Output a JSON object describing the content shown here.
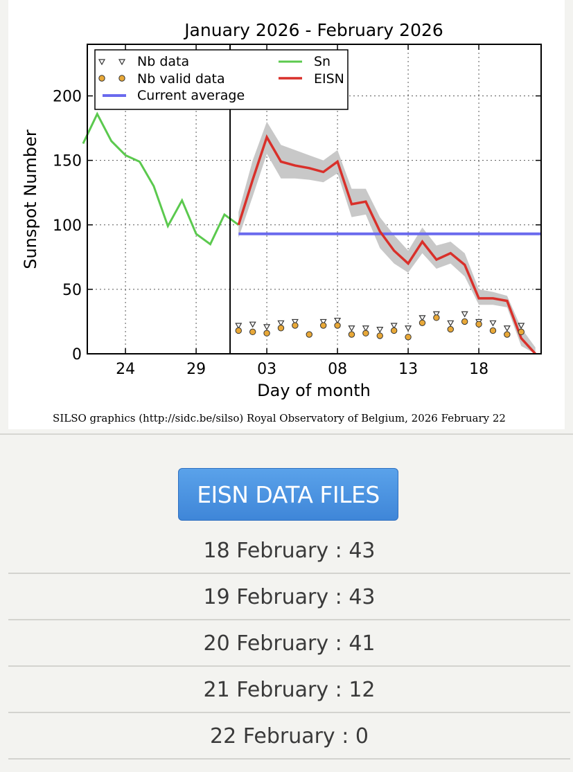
{
  "chart_data": {
    "type": "line",
    "title": "January 2026 - February 2026",
    "xlabel": "Day of month",
    "ylabel": "Sunspot Number",
    "ylim": [
      0,
      240
    ],
    "yticks": [
      0,
      50,
      100,
      150,
      200
    ],
    "xtick_labels": [
      "24",
      "29",
      "03",
      "08",
      "13",
      "18"
    ],
    "credit": "SILSO graphics (http://sidc.be/silso) Royal Observatory of Belgium, 2026 February 22",
    "grid": true,
    "legend_position": "top-left",
    "legend": {
      "nb_data": "Nb data",
      "nb_valid": "Nb valid data",
      "current_average": "Current average",
      "sn": "Sn",
      "eisn": "EISN"
    },
    "colors": {
      "sn": "#5bc94e",
      "eisn": "#d9302a",
      "average": "#6a6aee",
      "band": "#c8c8c8",
      "valid_marker": "#e8a838"
    },
    "sn_series": {
      "x": [
        "Jan 21",
        "Jan 22",
        "Jan 23",
        "Jan 24",
        "Jan 25",
        "Jan 26",
        "Jan 27",
        "Jan 28",
        "Jan 29",
        "Jan 30",
        "Jan 31",
        "Feb 01"
      ],
      "values": [
        163,
        186,
        165,
        154,
        149,
        130,
        99,
        119,
        93,
        85,
        108,
        100
      ]
    },
    "eisn_series": {
      "x": [
        "Feb 01",
        "Feb 02",
        "Feb 03",
        "Feb 04",
        "Feb 05",
        "Feb 06",
        "Feb 07",
        "Feb 08",
        "Feb 09",
        "Feb 10",
        "Feb 11",
        "Feb 12",
        "Feb 13",
        "Feb 14",
        "Feb 15",
        "Feb 16",
        "Feb 17",
        "Feb 18",
        "Feb 19",
        "Feb 20",
        "Feb 21",
        "Feb 22"
      ],
      "values": [
        100,
        135,
        168,
        149,
        146,
        144,
        141,
        149,
        116,
        118,
        95,
        80,
        70,
        87,
        73,
        78,
        69,
        43,
        43,
        41,
        12,
        0
      ],
      "band_upper": [
        110,
        150,
        180,
        162,
        158,
        154,
        150,
        158,
        128,
        128,
        106,
        92,
        80,
        98,
        84,
        87,
        78,
        50,
        48,
        45,
        20,
        5
      ],
      "band_lower": [
        90,
        122,
        155,
        136,
        136,
        135,
        133,
        140,
        106,
        108,
        82,
        70,
        63,
        78,
        66,
        70,
        60,
        38,
        38,
        36,
        6,
        0
      ]
    },
    "current_average": 93,
    "nb_data": [
      22,
      23,
      21,
      24,
      25,
      0,
      25,
      26,
      20,
      20,
      19,
      22,
      20,
      28,
      31,
      24,
      31,
      25,
      24,
      20,
      22
    ],
    "nb_valid_data": [
      18,
      17,
      16,
      20,
      22,
      15,
      22,
      22,
      15,
      16,
      14,
      18,
      13,
      24,
      28,
      19,
      25,
      23,
      18,
      15,
      17
    ]
  },
  "button": {
    "label": "EISN DATA FILES"
  },
  "recent_values": [
    {
      "text": "18 February : 43"
    },
    {
      "text": "19 February : 43"
    },
    {
      "text": "20 February : 41"
    },
    {
      "text": "21 February : 12"
    },
    {
      "text": "22 February : 0"
    }
  ]
}
